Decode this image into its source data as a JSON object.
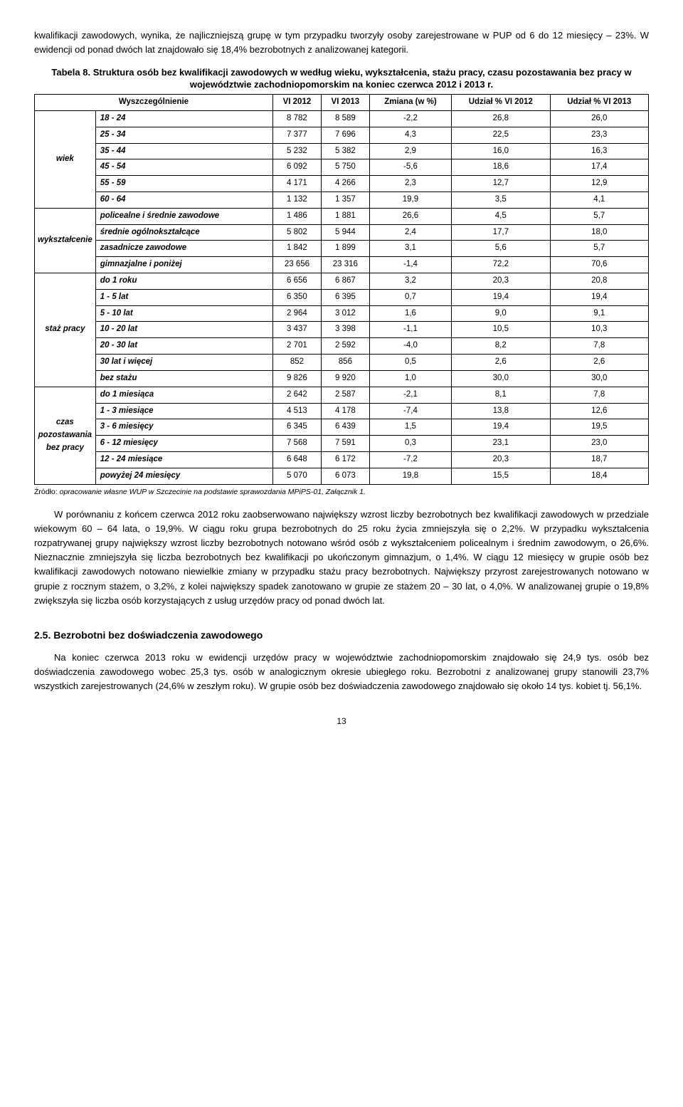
{
  "para1": "kwalifikacji zawodowych, wynika, że najliczniejszą grupę w tym przypadku tworzyły osoby zarejestrowane w PUP od 6 do 12 miesięcy – 23%. W ewidencji od ponad dwóch lat znajdowało się 18,4% bezrobotnych z analizowanej kategorii.",
  "table_caption": "Tabela 8. Struktura osób bez kwalifikacji zawodowych w według wieku, wykształcenia, stażu pracy, czasu pozostawania bez pracy w województwie zachodniopomorskim na koniec czerwca 2012 i 2013 r.",
  "table": {
    "headers": {
      "h1": "Wyszczególnienie",
      "h2": "VI 2012",
      "h3": "VI 2013",
      "h4": "Zmiana (w %)",
      "h5": "Udział % VI 2012",
      "h6": "Udział % VI 2013"
    },
    "groups": [
      {
        "label": "wiek",
        "rows": [
          {
            "k": "18 - 24",
            "a": "8 782",
            "b": "8 589",
            "c": "-2,2",
            "d": "26,8",
            "e": "26,0"
          },
          {
            "k": "25 - 34",
            "a": "7 377",
            "b": "7 696",
            "c": "4,3",
            "d": "22,5",
            "e": "23,3"
          },
          {
            "k": "35 - 44",
            "a": "5 232",
            "b": "5 382",
            "c": "2,9",
            "d": "16,0",
            "e": "16,3"
          },
          {
            "k": "45 - 54",
            "a": "6 092",
            "b": "5 750",
            "c": "-5,6",
            "d": "18,6",
            "e": "17,4"
          },
          {
            "k": "55 - 59",
            "a": "4 171",
            "b": "4 266",
            "c": "2,3",
            "d": "12,7",
            "e": "12,9"
          },
          {
            "k": "60 - 64",
            "a": "1 132",
            "b": "1 357",
            "c": "19,9",
            "d": "3,5",
            "e": "4,1"
          }
        ]
      },
      {
        "label": "wykształcenie",
        "rows": [
          {
            "k": "policealne i średnie zawodowe",
            "a": "1 486",
            "b": "1 881",
            "c": "26,6",
            "d": "4,5",
            "e": "5,7"
          },
          {
            "k": "średnie ogólnokształcące",
            "a": "5 802",
            "b": "5 944",
            "c": "2,4",
            "d": "17,7",
            "e": "18,0"
          },
          {
            "k": "zasadnicze zawodowe",
            "a": "1 842",
            "b": "1 899",
            "c": "3,1",
            "d": "5,6",
            "e": "5,7"
          },
          {
            "k": "gimnazjalne i poniżej",
            "a": "23 656",
            "b": "23 316",
            "c": "-1,4",
            "d": "72,2",
            "e": "70,6"
          }
        ]
      },
      {
        "label": "staż pracy",
        "rows": [
          {
            "k": "do 1 roku",
            "a": "6 656",
            "b": "6 867",
            "c": "3,2",
            "d": "20,3",
            "e": "20,8"
          },
          {
            "k": "1 - 5 lat",
            "a": "6 350",
            "b": "6 395",
            "c": "0,7",
            "d": "19,4",
            "e": "19,4"
          },
          {
            "k": "5 - 10 lat",
            "a": "2 964",
            "b": "3 012",
            "c": "1,6",
            "d": "9,0",
            "e": "9,1"
          },
          {
            "k": "10 - 20 lat",
            "a": "3 437",
            "b": "3 398",
            "c": "-1,1",
            "d": "10,5",
            "e": "10,3"
          },
          {
            "k": "20 - 30 lat",
            "a": "2 701",
            "b": "2 592",
            "c": "-4,0",
            "d": "8,2",
            "e": "7,8"
          },
          {
            "k": "30 lat i więcej",
            "a": "852",
            "b": "856",
            "c": "0,5",
            "d": "2,6",
            "e": "2,6"
          },
          {
            "k": "bez stażu",
            "a": "9 826",
            "b": "9 920",
            "c": "1,0",
            "d": "30,0",
            "e": "30,0"
          }
        ]
      },
      {
        "label": "czas pozostawania bez pracy",
        "rows": [
          {
            "k": "do 1 miesiąca",
            "a": "2 642",
            "b": "2 587",
            "c": "-2,1",
            "d": "8,1",
            "e": "7,8"
          },
          {
            "k": "1 - 3 miesiące",
            "a": "4 513",
            "b": "4 178",
            "c": "-7,4",
            "d": "13,8",
            "e": "12,6"
          },
          {
            "k": "3 - 6 miesięcy",
            "a": "6 345",
            "b": "6 439",
            "c": "1,5",
            "d": "19,4",
            "e": "19,5"
          },
          {
            "k": "6 - 12 miesięcy",
            "a": "7 568",
            "b": "7 591",
            "c": "0,3",
            "d": "23,1",
            "e": "23,0"
          },
          {
            "k": "12 - 24 miesiące",
            "a": "6 648",
            "b": "6 172",
            "c": "-7,2",
            "d": "20,3",
            "e": "18,7"
          },
          {
            "k": "powyżej 24 miesięcy",
            "a": "5 070",
            "b": "6 073",
            "c": "19,8",
            "d": "15,5",
            "e": "18,4"
          }
        ]
      }
    ]
  },
  "source_label": "Źródło: ",
  "source_text": "opracowanie własne WUP w Szczecinie na podstawie sprawozdania MPiPS-01, Załącznik 1.",
  "para2": "W porównaniu z końcem czerwca 2012 roku zaobserwowano największy wzrost liczby bezrobotnych bez kwalifikacji zawodowych w przedziale wiekowym 60 – 64 lata, o 19,9%. W ciągu roku grupa bezrobotnych do 25 roku życia zmniejszyła się o 2,2%. W przypadku wykształcenia rozpatrywanej grupy największy wzrost liczby bezrobotnych notowano wśród osób z wykształceniem policealnym i średnim zawodowym, o 26,6%. Nieznacznie zmniejszyła się liczba bezrobotnych bez kwalifikacji po ukończonym gimnazjum, o 1,4%. W ciągu 12 miesięcy w grupie osób bez kwalifikacji zawodowych notowano niewielkie zmiany w przypadku stażu pracy bezrobotnych. Największy przyrost zarejestrowanych notowano w grupie z rocznym stażem, o 3,2%, z kolei największy spadek zanotowano w grupie ze stażem 20 – 30 lat, o 4,0%. W analizowanej grupie o 19,8% zwiększyła się liczba osób korzystających z usług urzędów pracy od ponad dwóch lat.",
  "section_heading": "2.5. Bezrobotni bez doświadczenia zawodowego",
  "para3": "Na koniec czerwca 2013 roku w ewidencji urzędów pracy w województwie zachodniopomorskim znajdowało się 24,9 tys. osób bez doświadczenia zawodowego wobec 25,3 tys. osób w analogicznym okresie ubiegłego roku. Bezrobotni z analizowanej grupy stanowili 23,7% wszystkich zarejestrowanych (24,6% w zeszłym roku). W grupie osób bez doświadczenia zawodowego znajdowało się około 14 tys. kobiet tj. 56,1%.",
  "page_number": "13"
}
